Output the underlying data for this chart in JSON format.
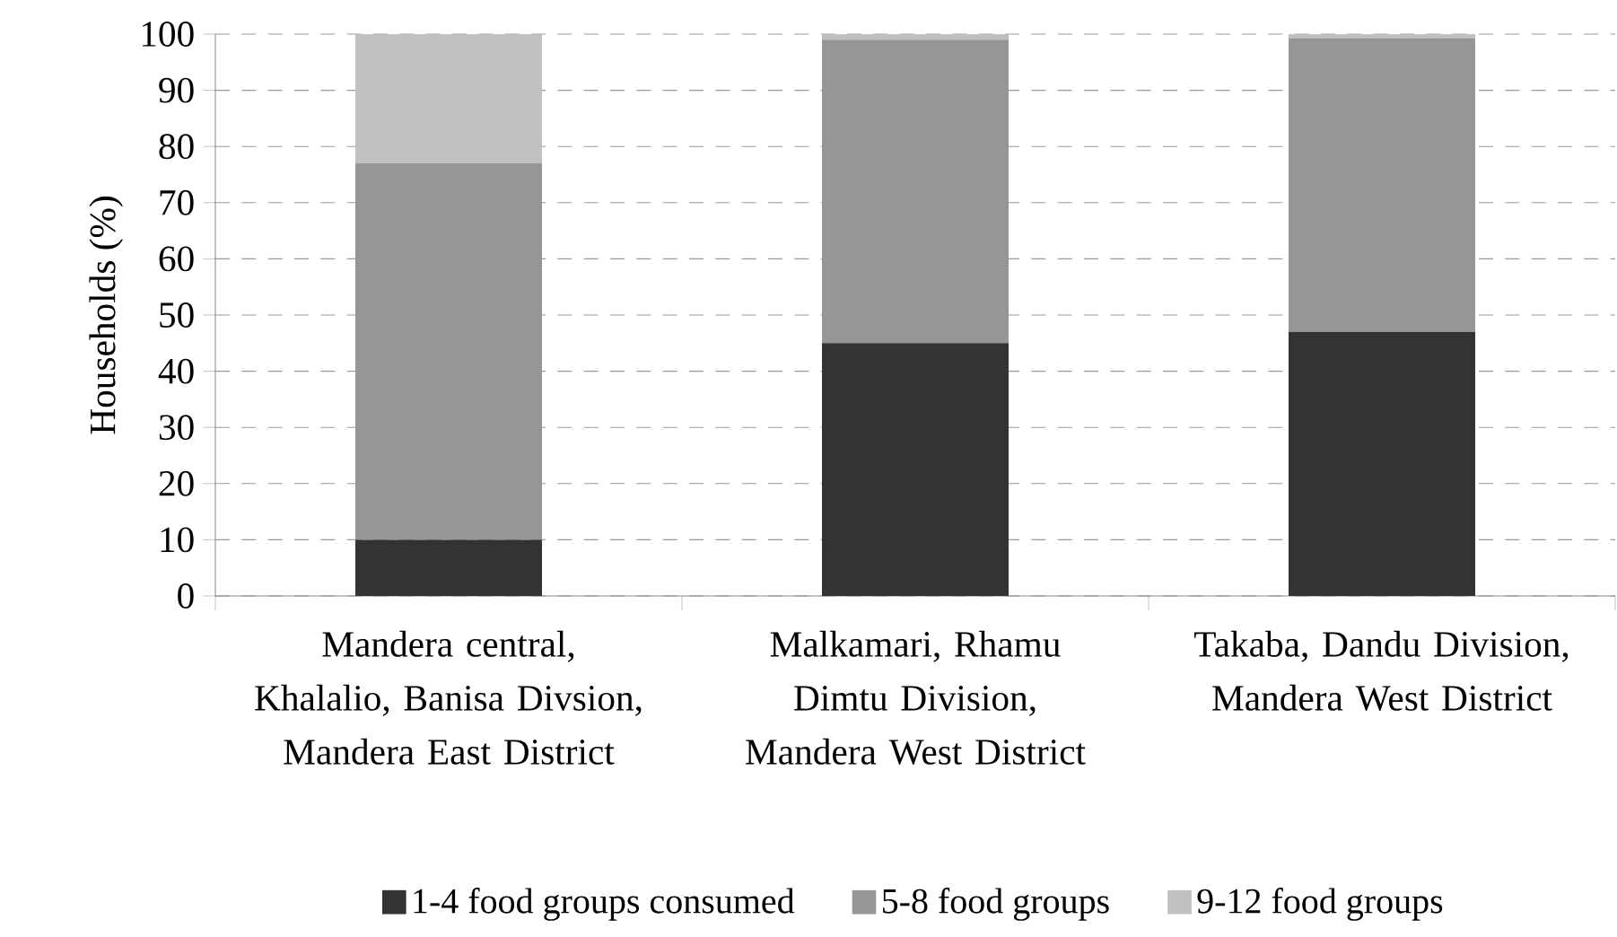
{
  "chart_data": {
    "type": "bar",
    "stacked": true,
    "ylabel": "Households (%)",
    "categories": [
      "Mandera central, Khalalio, Banisa Divsion, Mandera East District",
      "Malkamari, Rhamu Dimtu Division, Mandera West District",
      "Takaba, Dandu Division, Mandera West District"
    ],
    "series": [
      {
        "name": "1-4 food groups consumed",
        "color": "#333333",
        "values": [
          10,
          45,
          47
        ]
      },
      {
        "name": "5-8 food groups",
        "color": "#969696",
        "values": [
          67,
          54,
          52.3
        ]
      },
      {
        "name": "9-12 food groups",
        "color": "#c0c0c0",
        "values": [
          23,
          1,
          0.7
        ]
      }
    ],
    "ylim": [
      0,
      100
    ],
    "yticks": [
      0,
      10,
      20,
      30,
      40,
      50,
      60,
      70,
      80,
      90,
      100
    ],
    "grid": "y",
    "legend": "bottom"
  }
}
